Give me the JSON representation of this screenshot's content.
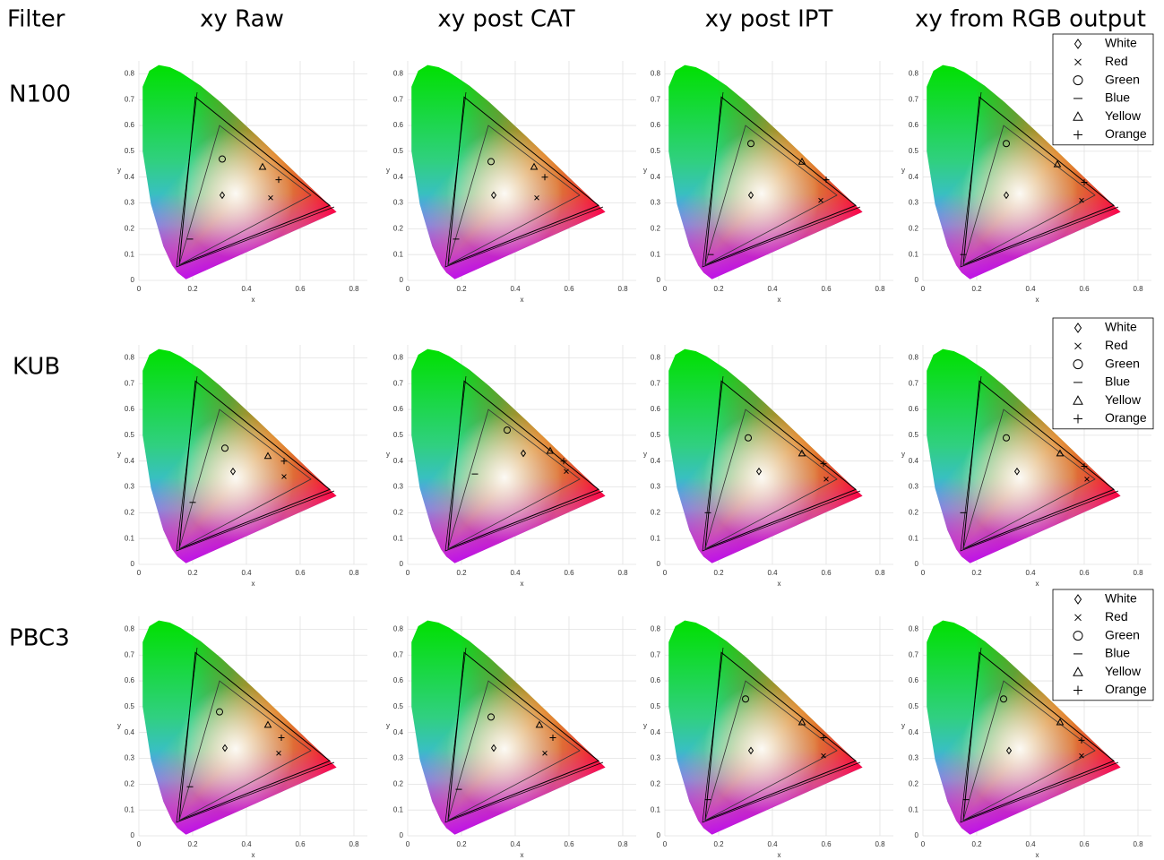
{
  "header": {
    "columns": [
      "Filter",
      "xy Raw",
      "xy post CAT",
      "xy post IPT",
      "xy from RGB output"
    ],
    "rows": [
      "N100",
      "KUB",
      "PBC3"
    ]
  },
  "chart_data": [
    {
      "type": "scatter",
      "xlabel": "x",
      "ylabel": "y",
      "xlim": [
        0,
        0.85
      ],
      "ylim": [
        0,
        0.85
      ],
      "xticks": [
        0,
        0.2,
        0.4,
        0.6,
        0.8
      ],
      "yticks": [
        0,
        0.1,
        0.2,
        0.3,
        0.4,
        0.5,
        0.6,
        0.7,
        0.8
      ],
      "grid": true,
      "series": [
        {
          "marker": "diamond",
          "x": [
            0.31
          ],
          "values": [
            0.33
          ]
        },
        {
          "marker": "x",
          "x": [
            0.49
          ],
          "values": [
            0.32
          ]
        },
        {
          "marker": "circle",
          "x": [
            0.31
          ],
          "values": [
            0.47
          ]
        },
        {
          "marker": "dash",
          "x": [
            0.19
          ],
          "values": [
            0.16
          ]
        },
        {
          "marker": "triangle",
          "x": [
            0.46
          ],
          "values": [
            0.44
          ]
        },
        {
          "marker": "plus",
          "x": [
            0.52
          ],
          "values": [
            0.39
          ]
        }
      ]
    },
    {
      "type": "scatter",
      "xlabel": "x",
      "ylabel": "y",
      "xlim": [
        0,
        0.85
      ],
      "ylim": [
        0,
        0.85
      ],
      "xticks": [
        0,
        0.2,
        0.4,
        0.6,
        0.8
      ],
      "yticks": [
        0,
        0.1,
        0.2,
        0.3,
        0.4,
        0.5,
        0.6,
        0.7,
        0.8
      ],
      "grid": true,
      "series": [
        {
          "marker": "diamond",
          "x": [
            0.32
          ],
          "values": [
            0.33
          ]
        },
        {
          "marker": "x",
          "x": [
            0.48
          ],
          "values": [
            0.32
          ]
        },
        {
          "marker": "circle",
          "x": [
            0.31
          ],
          "values": [
            0.46
          ]
        },
        {
          "marker": "dash",
          "x": [
            0.18
          ],
          "values": [
            0.16
          ]
        },
        {
          "marker": "triangle",
          "x": [
            0.47
          ],
          "values": [
            0.44
          ]
        },
        {
          "marker": "plus",
          "x": [
            0.51
          ],
          "values": [
            0.4
          ]
        }
      ]
    },
    {
      "type": "scatter",
      "xlabel": "x",
      "ylabel": "y",
      "xlim": [
        0,
        0.85
      ],
      "ylim": [
        0,
        0.85
      ],
      "xticks": [
        0,
        0.2,
        0.4,
        0.6,
        0.8
      ],
      "yticks": [
        0,
        0.1,
        0.2,
        0.3,
        0.4,
        0.5,
        0.6,
        0.7,
        0.8
      ],
      "grid": true,
      "series": [
        {
          "marker": "diamond",
          "x": [
            0.32
          ],
          "values": [
            0.33
          ]
        },
        {
          "marker": "x",
          "x": [
            0.58
          ],
          "values": [
            0.31
          ]
        },
        {
          "marker": "circle",
          "x": [
            0.32
          ],
          "values": [
            0.53
          ]
        },
        {
          "marker": "dash",
          "x": [
            0.17
          ],
          "values": [
            0.1
          ]
        },
        {
          "marker": "triangle",
          "x": [
            0.51
          ],
          "values": [
            0.46
          ]
        },
        {
          "marker": "plus",
          "x": [
            0.6
          ],
          "values": [
            0.39
          ]
        }
      ]
    },
    {
      "type": "scatter",
      "xlabel": "x",
      "ylabel": "y",
      "xlim": [
        0,
        0.85
      ],
      "ylim": [
        0,
        0.85
      ],
      "xticks": [
        0,
        0.2,
        0.4,
        0.6,
        0.8
      ],
      "yticks": [
        0,
        0.1,
        0.2,
        0.3,
        0.4,
        0.5,
        0.6,
        0.7,
        0.8
      ],
      "grid": true,
      "legend": "upper right",
      "series": [
        {
          "name": "White",
          "marker": "diamond",
          "x": [
            0.31
          ],
          "values": [
            0.33
          ]
        },
        {
          "name": "Red",
          "marker": "x",
          "x": [
            0.59
          ],
          "values": [
            0.31
          ]
        },
        {
          "name": "Green",
          "marker": "circle",
          "x": [
            0.31
          ],
          "values": [
            0.53
          ]
        },
        {
          "name": "Blue",
          "marker": "dash",
          "x": [
            0.15
          ],
          "values": [
            0.1
          ]
        },
        {
          "name": "Yellow",
          "marker": "triangle",
          "x": [
            0.5
          ],
          "values": [
            0.45
          ]
        },
        {
          "name": "Orange",
          "marker": "plus",
          "x": [
            0.6
          ],
          "values": [
            0.38
          ]
        }
      ]
    },
    {
      "type": "scatter",
      "xlabel": "x",
      "ylabel": "y",
      "xlim": [
        0,
        0.85
      ],
      "ylim": [
        0,
        0.85
      ],
      "xticks": [
        0,
        0.2,
        0.4,
        0.6,
        0.8
      ],
      "yticks": [
        0,
        0.1,
        0.2,
        0.3,
        0.4,
        0.5,
        0.6,
        0.7,
        0.8
      ],
      "grid": true,
      "series": [
        {
          "marker": "diamond",
          "x": [
            0.35
          ],
          "values": [
            0.36
          ]
        },
        {
          "marker": "x",
          "x": [
            0.54
          ],
          "values": [
            0.34
          ]
        },
        {
          "marker": "circle",
          "x": [
            0.32
          ],
          "values": [
            0.45
          ]
        },
        {
          "marker": "dash",
          "x": [
            0.2
          ],
          "values": [
            0.24
          ]
        },
        {
          "marker": "triangle",
          "x": [
            0.48
          ],
          "values": [
            0.42
          ]
        },
        {
          "marker": "plus",
          "x": [
            0.54
          ],
          "values": [
            0.4
          ]
        }
      ]
    },
    {
      "type": "scatter",
      "xlabel": "x",
      "ylabel": "y",
      "xlim": [
        0,
        0.85
      ],
      "ylim": [
        0,
        0.85
      ],
      "xticks": [
        0,
        0.2,
        0.4,
        0.6,
        0.8
      ],
      "yticks": [
        0,
        0.1,
        0.2,
        0.3,
        0.4,
        0.5,
        0.6,
        0.7,
        0.8
      ],
      "grid": true,
      "series": [
        {
          "marker": "diamond",
          "x": [
            0.43
          ],
          "values": [
            0.43
          ]
        },
        {
          "marker": "x",
          "x": [
            0.59
          ],
          "values": [
            0.36
          ]
        },
        {
          "marker": "circle",
          "x": [
            0.37
          ],
          "values": [
            0.52
          ]
        },
        {
          "marker": "dash",
          "x": [
            0.25
          ],
          "values": [
            0.35
          ]
        },
        {
          "marker": "triangle",
          "x": [
            0.53
          ],
          "values": [
            0.44
          ]
        },
        {
          "marker": "plus",
          "x": [
            0.58
          ],
          "values": [
            0.4
          ]
        }
      ]
    },
    {
      "type": "scatter",
      "xlabel": "x",
      "ylabel": "y",
      "xlim": [
        0,
        0.85
      ],
      "ylim": [
        0,
        0.85
      ],
      "xticks": [
        0,
        0.2,
        0.4,
        0.6,
        0.8
      ],
      "yticks": [
        0,
        0.1,
        0.2,
        0.3,
        0.4,
        0.5,
        0.6,
        0.7,
        0.8
      ],
      "grid": true,
      "series": [
        {
          "marker": "diamond",
          "x": [
            0.35
          ],
          "values": [
            0.36
          ]
        },
        {
          "marker": "x",
          "x": [
            0.6
          ],
          "values": [
            0.33
          ]
        },
        {
          "marker": "circle",
          "x": [
            0.31
          ],
          "values": [
            0.49
          ]
        },
        {
          "marker": "dash",
          "x": [
            0.16
          ],
          "values": [
            0.2
          ]
        },
        {
          "marker": "triangle",
          "x": [
            0.51
          ],
          "values": [
            0.43
          ]
        },
        {
          "marker": "plus",
          "x": [
            0.59
          ],
          "values": [
            0.39
          ]
        }
      ]
    },
    {
      "type": "scatter",
      "xlabel": "x",
      "ylabel": "y",
      "xlim": [
        0,
        0.85
      ],
      "ylim": [
        0,
        0.85
      ],
      "xticks": [
        0,
        0.2,
        0.4,
        0.6,
        0.8
      ],
      "yticks": [
        0,
        0.1,
        0.2,
        0.3,
        0.4,
        0.5,
        0.6,
        0.7,
        0.8
      ],
      "grid": true,
      "legend": "upper right",
      "series": [
        {
          "name": "White",
          "marker": "diamond",
          "x": [
            0.35
          ],
          "values": [
            0.36
          ]
        },
        {
          "name": "Red",
          "marker": "x",
          "x": [
            0.61
          ],
          "values": [
            0.33
          ]
        },
        {
          "name": "Green",
          "marker": "circle",
          "x": [
            0.31
          ],
          "values": [
            0.49
          ]
        },
        {
          "name": "Blue",
          "marker": "dash",
          "x": [
            0.15
          ],
          "values": [
            0.2
          ]
        },
        {
          "name": "Yellow",
          "marker": "triangle",
          "x": [
            0.51
          ],
          "values": [
            0.43
          ]
        },
        {
          "name": "Orange",
          "marker": "plus",
          "x": [
            0.6
          ],
          "values": [
            0.38
          ]
        }
      ]
    },
    {
      "type": "scatter",
      "xlabel": "x",
      "ylabel": "y",
      "xlim": [
        0,
        0.85
      ],
      "ylim": [
        0,
        0.85
      ],
      "xticks": [
        0,
        0.2,
        0.4,
        0.6,
        0.8
      ],
      "yticks": [
        0,
        0.1,
        0.2,
        0.3,
        0.4,
        0.5,
        0.6,
        0.7,
        0.8
      ],
      "grid": true,
      "series": [
        {
          "marker": "diamond",
          "x": [
            0.32
          ],
          "values": [
            0.34
          ]
        },
        {
          "marker": "x",
          "x": [
            0.52
          ],
          "values": [
            0.32
          ]
        },
        {
          "marker": "circle",
          "x": [
            0.3
          ],
          "values": [
            0.48
          ]
        },
        {
          "marker": "dash",
          "x": [
            0.19
          ],
          "values": [
            0.19
          ]
        },
        {
          "marker": "triangle",
          "x": [
            0.48
          ],
          "values": [
            0.43
          ]
        },
        {
          "marker": "plus",
          "x": [
            0.53
          ],
          "values": [
            0.38
          ]
        }
      ]
    },
    {
      "type": "scatter",
      "xlabel": "x",
      "ylabel": "y",
      "xlim": [
        0,
        0.85
      ],
      "ylim": [
        0,
        0.85
      ],
      "xticks": [
        0,
        0.2,
        0.4,
        0.6,
        0.8
      ],
      "yticks": [
        0,
        0.1,
        0.2,
        0.3,
        0.4,
        0.5,
        0.6,
        0.7,
        0.8
      ],
      "grid": true,
      "series": [
        {
          "marker": "diamond",
          "x": [
            0.32
          ],
          "values": [
            0.34
          ]
        },
        {
          "marker": "x",
          "x": [
            0.51
          ],
          "values": [
            0.32
          ]
        },
        {
          "marker": "circle",
          "x": [
            0.31
          ],
          "values": [
            0.46
          ]
        },
        {
          "marker": "dash",
          "x": [
            0.19
          ],
          "values": [
            0.18
          ]
        },
        {
          "marker": "triangle",
          "x": [
            0.49
          ],
          "values": [
            0.43
          ]
        },
        {
          "marker": "plus",
          "x": [
            0.54
          ],
          "values": [
            0.38
          ]
        }
      ]
    },
    {
      "type": "scatter",
      "xlabel": "x",
      "ylabel": "y",
      "xlim": [
        0,
        0.85
      ],
      "ylim": [
        0,
        0.85
      ],
      "xticks": [
        0,
        0.2,
        0.4,
        0.6,
        0.8
      ],
      "yticks": [
        0,
        0.1,
        0.2,
        0.3,
        0.4,
        0.5,
        0.6,
        0.7,
        0.8
      ],
      "grid": true,
      "series": [
        {
          "marker": "diamond",
          "x": [
            0.32
          ],
          "values": [
            0.33
          ]
        },
        {
          "marker": "x",
          "x": [
            0.59
          ],
          "values": [
            0.31
          ]
        },
        {
          "marker": "circle",
          "x": [
            0.3
          ],
          "values": [
            0.53
          ]
        },
        {
          "marker": "dash",
          "x": [
            0.16
          ],
          "values": [
            0.14
          ]
        },
        {
          "marker": "triangle",
          "x": [
            0.51
          ],
          "values": [
            0.44
          ]
        },
        {
          "marker": "plus",
          "x": [
            0.59
          ],
          "values": [
            0.38
          ]
        }
      ]
    },
    {
      "type": "scatter",
      "xlabel": "x",
      "ylabel": "y",
      "xlim": [
        0,
        0.85
      ],
      "ylim": [
        0,
        0.85
      ],
      "xticks": [
        0,
        0.2,
        0.4,
        0.6,
        0.8
      ],
      "yticks": [
        0,
        0.1,
        0.2,
        0.3,
        0.4,
        0.5,
        0.6,
        0.7,
        0.8
      ],
      "grid": true,
      "legend": "upper right",
      "series": [
        {
          "name": "White",
          "marker": "diamond",
          "x": [
            0.32
          ],
          "values": [
            0.33
          ]
        },
        {
          "name": "Red",
          "marker": "x",
          "x": [
            0.59
          ],
          "values": [
            0.31
          ]
        },
        {
          "name": "Green",
          "marker": "circle",
          "x": [
            0.3
          ],
          "values": [
            0.53
          ]
        },
        {
          "name": "Blue",
          "marker": "dash",
          "x": [
            0.16
          ],
          "values": [
            0.14
          ]
        },
        {
          "name": "Yellow",
          "marker": "triangle",
          "x": [
            0.51
          ],
          "values": [
            0.44
          ]
        },
        {
          "name": "Orange",
          "marker": "plus",
          "x": [
            0.59
          ],
          "values": [
            0.37
          ]
        }
      ]
    }
  ]
}
